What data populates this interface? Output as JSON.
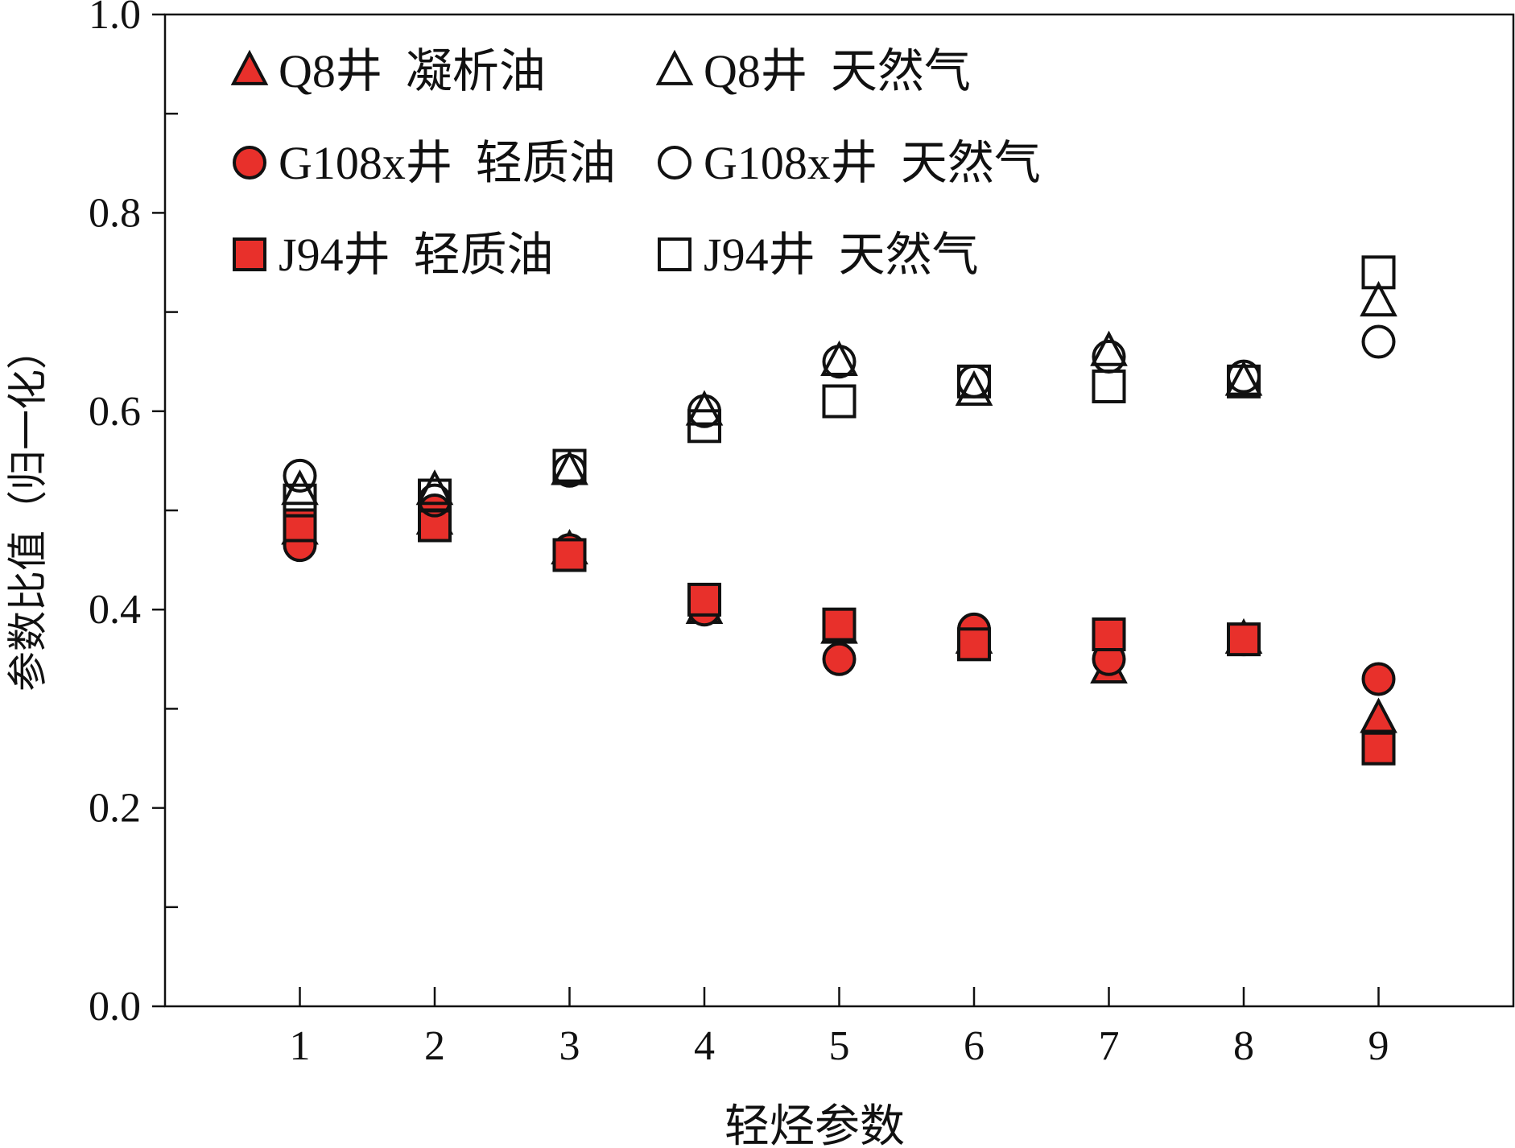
{
  "chart_data": {
    "type": "scatter",
    "title": "",
    "xlabel": "轻烃参数",
    "ylabel": "参数比值（归一化）",
    "xlim": [
      0,
      10
    ],
    "ylim": [
      0,
      1.0
    ],
    "x_ticks": [
      1,
      2,
      3,
      4,
      5,
      6,
      7,
      8,
      9
    ],
    "x_tick_labels": [
      "1",
      "2",
      "3",
      "4",
      "5",
      "6",
      "7",
      "8",
      "9"
    ],
    "y_ticks": [
      0,
      0.2,
      0.4,
      0.6,
      0.8,
      1.0
    ],
    "y_tick_labels": [
      "0.0",
      "0.2",
      "0.4",
      "0.6",
      "0.8",
      "1.0"
    ],
    "y_minor_ticks": [
      0.1,
      0.3,
      0.5,
      0.7,
      0.9
    ],
    "legend_position": "top-left",
    "grid": false,
    "series": [
      {
        "name": "Q8井  凝析油",
        "marker": "triangle",
        "filled": true,
        "color": "#e8302b",
        "x": [
          1,
          2,
          3,
          4,
          5,
          6,
          7,
          8,
          9
        ],
        "y": [
          0.48,
          0.49,
          0.46,
          0.4,
          0.38,
          0.37,
          0.34,
          0.37,
          0.29
        ]
      },
      {
        "name": "Q8井  天然气",
        "marker": "triangle",
        "filled": false,
        "color": "#111111",
        "x": [
          1,
          2,
          3,
          4,
          5,
          6,
          7,
          8,
          9
        ],
        "y": [
          0.52,
          0.52,
          0.54,
          0.6,
          0.65,
          0.62,
          0.66,
          0.63,
          0.71
        ]
      },
      {
        "name": "G108x井  轻质油",
        "marker": "circle",
        "filled": true,
        "color": "#e8302b",
        "x": [
          1,
          2,
          3,
          4,
          5,
          6,
          7,
          8,
          9
        ],
        "y": [
          0.465,
          0.5,
          0.46,
          0.4,
          0.35,
          0.38,
          0.35,
          0.37,
          0.33
        ]
      },
      {
        "name": "G108x井  天然气",
        "marker": "circle",
        "filled": false,
        "color": "#111111",
        "x": [
          1,
          2,
          3,
          4,
          5,
          6,
          7,
          8,
          9
        ],
        "y": [
          0.535,
          0.51,
          0.54,
          0.6,
          0.65,
          0.63,
          0.655,
          0.635,
          0.67
        ]
      },
      {
        "name": "J94井  轻质油",
        "marker": "square",
        "filled": true,
        "color": "#e8302b",
        "x": [
          1,
          2,
          3,
          4,
          5,
          6,
          7,
          8,
          9
        ],
        "y": [
          0.485,
          0.485,
          0.455,
          0.41,
          0.385,
          0.365,
          0.375,
          0.37,
          0.26
        ]
      },
      {
        "name": "J94井  天然气",
        "marker": "square",
        "filled": false,
        "color": "#111111",
        "x": [
          1,
          2,
          3,
          4,
          5,
          6,
          7,
          8,
          9
        ],
        "y": [
          0.51,
          0.515,
          0.545,
          0.585,
          0.61,
          0.63,
          0.625,
          0.63,
          0.74
        ]
      }
    ]
  }
}
